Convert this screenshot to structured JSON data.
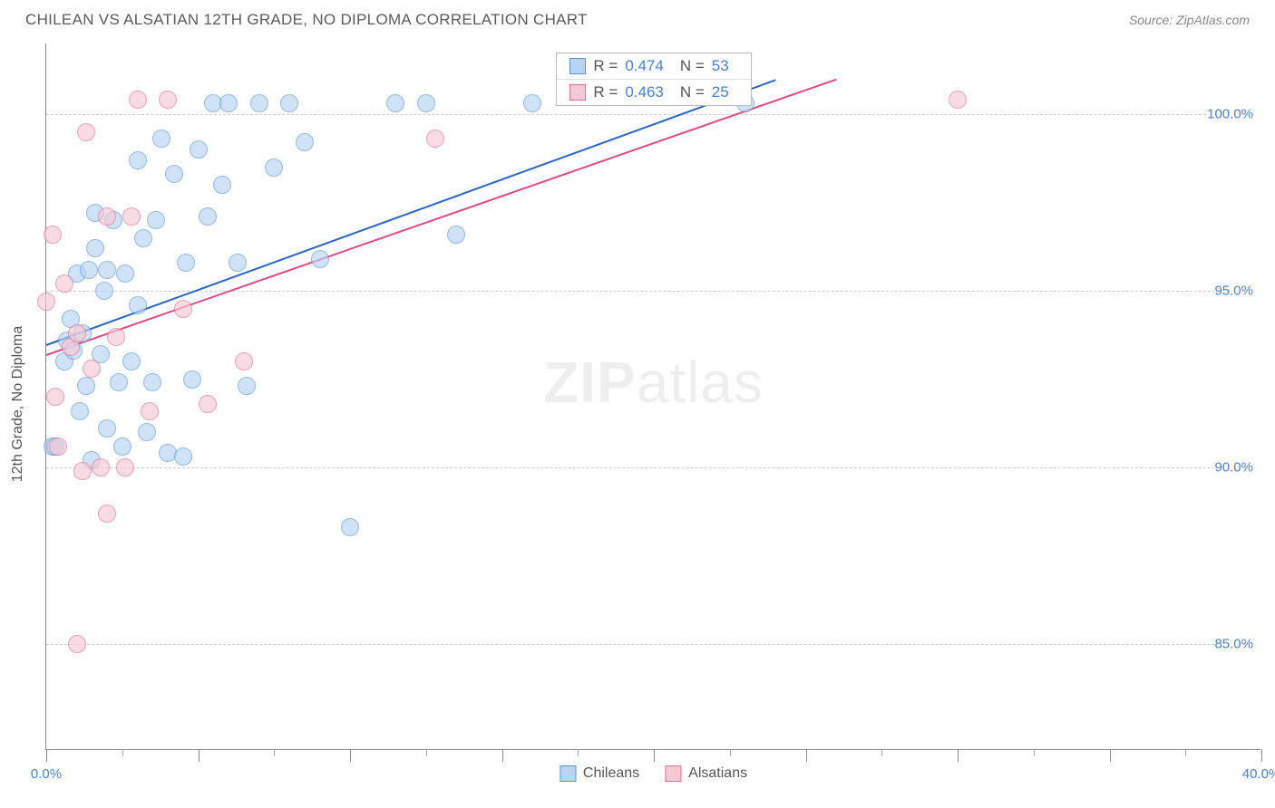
{
  "header": {
    "title": "CHILEAN VS ALSATIAN 12TH GRADE, NO DIPLOMA CORRELATION CHART",
    "source": "Source: ZipAtlas.com"
  },
  "watermark": {
    "bold": "ZIP",
    "light": "atlas"
  },
  "chart": {
    "type": "scatter",
    "ylabel": "12th Grade, No Diploma",
    "background_color": "#ffffff",
    "grid_color": "#cccccc",
    "axis_color": "#888888",
    "tick_label_color": "#4a7fd6",
    "xlim": [
      0,
      40
    ],
    "ylim": [
      82,
      102
    ],
    "x_major_ticks": [
      0,
      5,
      10,
      15,
      20,
      25,
      30,
      35,
      40
    ],
    "x_labels": [
      {
        "x": 0,
        "text": "0.0%"
      },
      {
        "x": 40,
        "text": "40.0%"
      }
    ],
    "y_gridlines": [
      85,
      90,
      95,
      100
    ],
    "y_labels": [
      {
        "y": 85,
        "text": "85.0%"
      },
      {
        "y": 90,
        "text": "90.0%"
      },
      {
        "y": 95,
        "text": "95.0%"
      },
      {
        "y": 100,
        "text": "100.0%"
      }
    ],
    "series": [
      {
        "name": "Chileans",
        "fill": "#b8d4f2",
        "stroke": "#5b94d6",
        "line_color": "#2c64c7",
        "marker_radius": 10,
        "fill_opacity": 0.65,
        "R": "0.474",
        "N": "53",
        "trend": {
          "x1": 0,
          "y1": 93.5,
          "x2": 24,
          "y2": 101.0
        },
        "points": [
          [
            0.2,
            90.6
          ],
          [
            0.3,
            90.6
          ],
          [
            0.6,
            93.0
          ],
          [
            0.7,
            93.6
          ],
          [
            0.8,
            94.2
          ],
          [
            0.9,
            93.3
          ],
          [
            1.0,
            95.5
          ],
          [
            1.1,
            91.6
          ],
          [
            1.2,
            93.8
          ],
          [
            1.3,
            92.3
          ],
          [
            1.4,
            95.6
          ],
          [
            1.5,
            90.2
          ],
          [
            1.6,
            97.2
          ],
          [
            1.6,
            96.2
          ],
          [
            1.8,
            93.2
          ],
          [
            1.9,
            95.0
          ],
          [
            2.0,
            95.6
          ],
          [
            2.0,
            91.1
          ],
          [
            2.2,
            97.0
          ],
          [
            2.4,
            92.4
          ],
          [
            2.5,
            90.6
          ],
          [
            2.6,
            95.5
          ],
          [
            2.8,
            93.0
          ],
          [
            3.0,
            98.7
          ],
          [
            3.0,
            94.6
          ],
          [
            3.2,
            96.5
          ],
          [
            3.3,
            91.0
          ],
          [
            3.5,
            92.4
          ],
          [
            3.6,
            97.0
          ],
          [
            3.8,
            99.3
          ],
          [
            4.0,
            90.4
          ],
          [
            4.2,
            98.3
          ],
          [
            4.5,
            90.3
          ],
          [
            4.6,
            95.8
          ],
          [
            4.8,
            92.5
          ],
          [
            5.0,
            99.0
          ],
          [
            5.3,
            97.1
          ],
          [
            5.5,
            100.3
          ],
          [
            5.8,
            98.0
          ],
          [
            6.0,
            100.3
          ],
          [
            6.3,
            95.8
          ],
          [
            6.6,
            92.3
          ],
          [
            7.0,
            100.3
          ],
          [
            7.5,
            98.5
          ],
          [
            8.0,
            100.3
          ],
          [
            8.5,
            99.2
          ],
          [
            9.0,
            95.9
          ],
          [
            10.0,
            88.3
          ],
          [
            11.5,
            100.3
          ],
          [
            12.5,
            100.3
          ],
          [
            13.5,
            96.6
          ],
          [
            16.0,
            100.3
          ],
          [
            23.0,
            100.3
          ]
        ]
      },
      {
        "name": "Alsatians",
        "fill": "#f7c9d5",
        "stroke": "#e36f93",
        "line_color": "#e14a82",
        "marker_radius": 10,
        "fill_opacity": 0.65,
        "R": "0.463",
        "N": "25",
        "trend": {
          "x1": 0,
          "y1": 93.2,
          "x2": 26,
          "y2": 101.0
        },
        "points": [
          [
            0.0,
            94.7
          ],
          [
            0.2,
            96.6
          ],
          [
            0.3,
            92.0
          ],
          [
            0.4,
            90.6
          ],
          [
            0.6,
            95.2
          ],
          [
            0.8,
            93.4
          ],
          [
            1.0,
            93.8
          ],
          [
            1.2,
            89.9
          ],
          [
            1.3,
            99.5
          ],
          [
            1.5,
            92.8
          ],
          [
            1.8,
            90.0
          ],
          [
            2.0,
            97.1
          ],
          [
            2.0,
            88.7
          ],
          [
            2.3,
            93.7
          ],
          [
            2.6,
            90.0
          ],
          [
            2.8,
            97.1
          ],
          [
            3.0,
            100.4
          ],
          [
            3.4,
            91.6
          ],
          [
            4.0,
            100.4
          ],
          [
            4.5,
            94.5
          ],
          [
            5.3,
            91.8
          ],
          [
            6.5,
            93.0
          ],
          [
            12.8,
            99.3
          ],
          [
            30.0,
            100.4
          ],
          [
            1.0,
            85.0
          ]
        ]
      }
    ],
    "legend": {
      "items": [
        {
          "label": "Chileans",
          "fill": "#b8d4f2",
          "stroke": "#5b94d6"
        },
        {
          "label": "Alsatians",
          "fill": "#f7c9d5",
          "stroke": "#e36f93"
        }
      ]
    }
  }
}
